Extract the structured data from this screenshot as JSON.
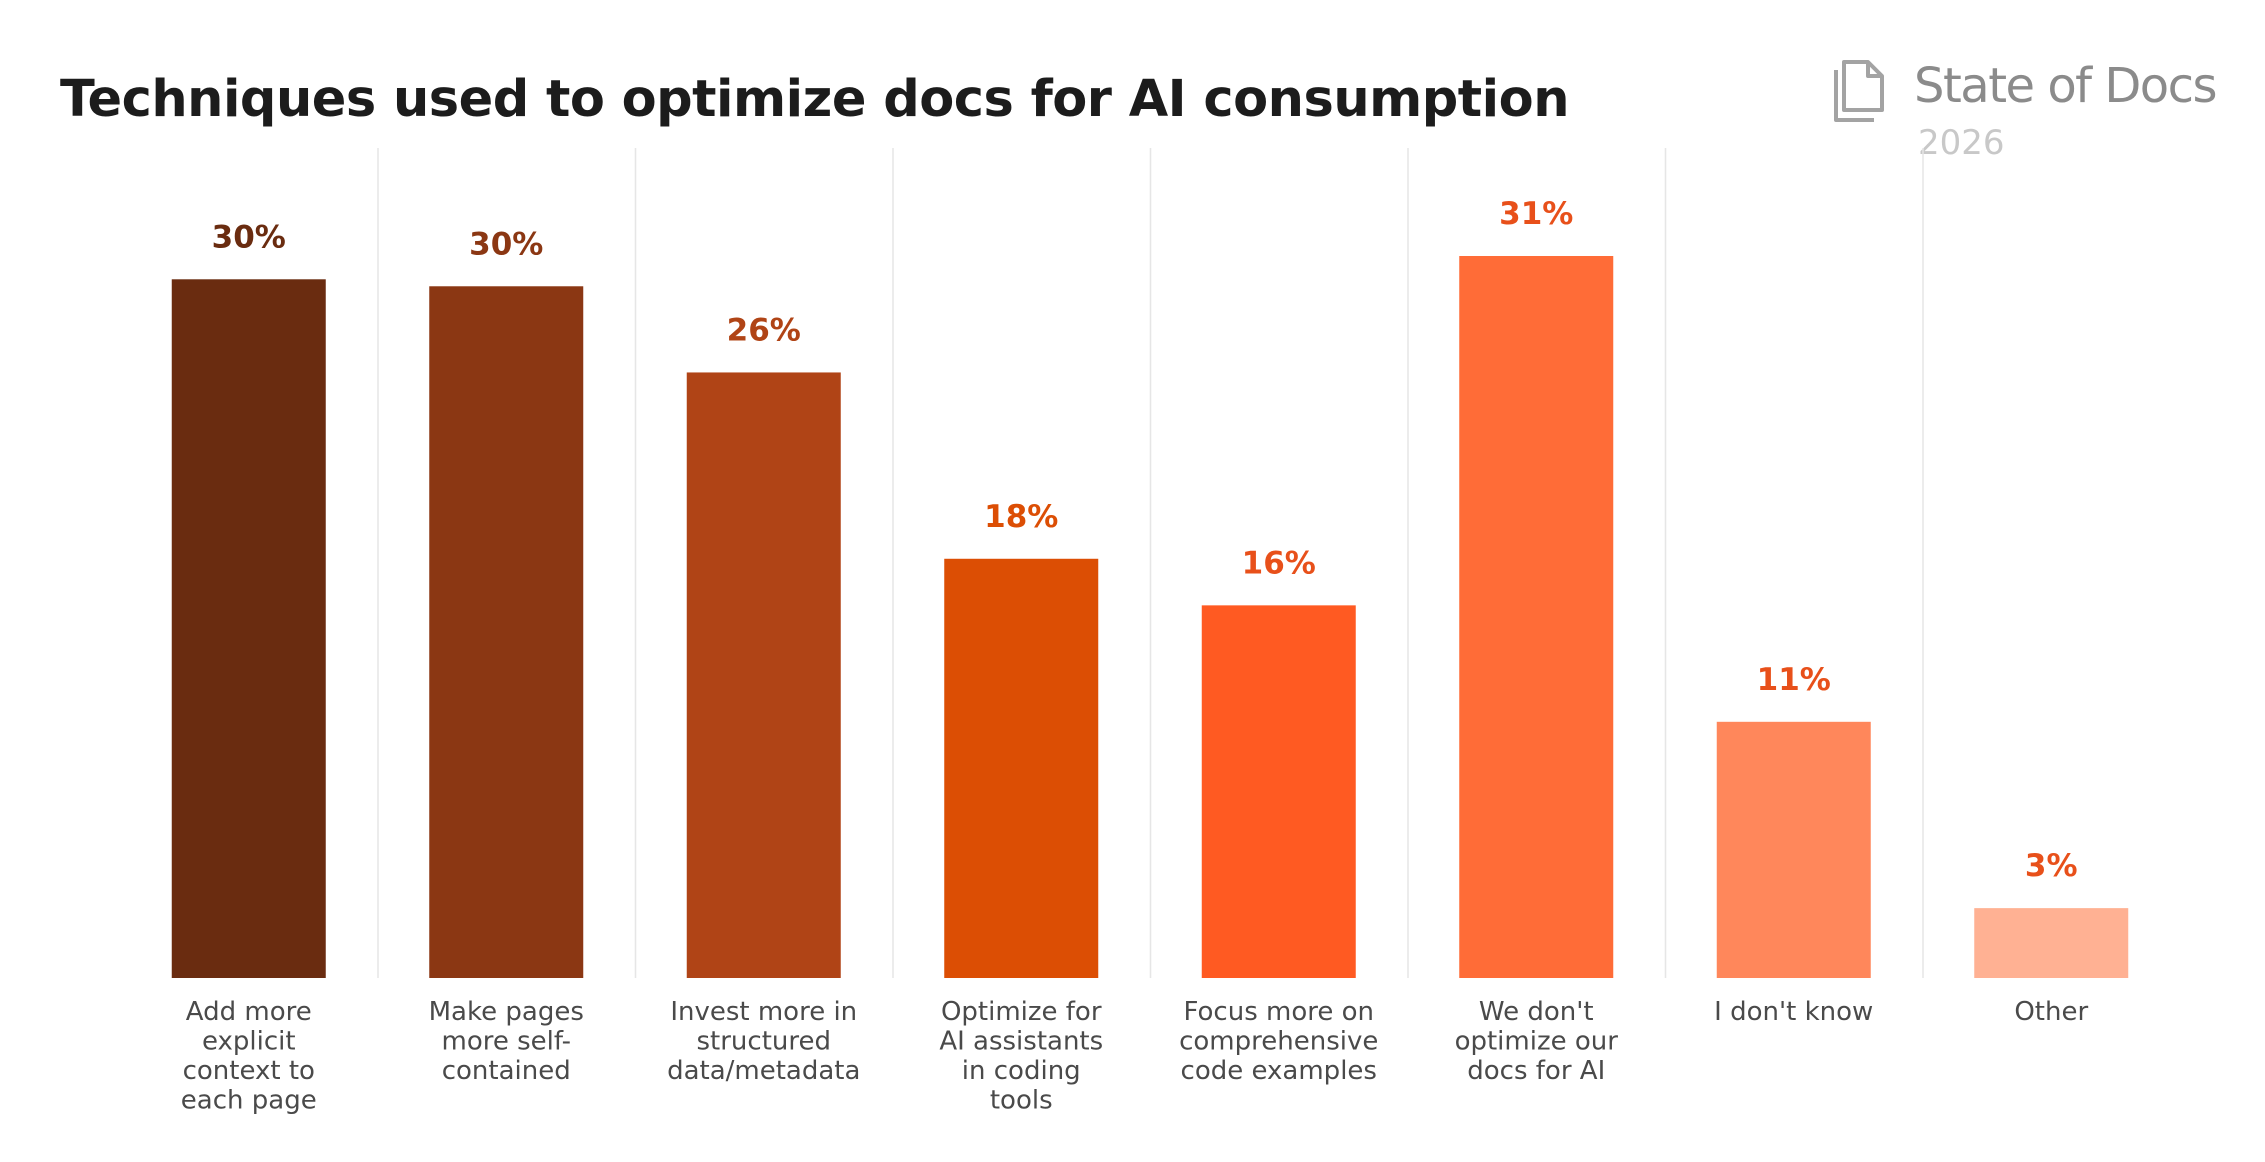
{
  "header": {
    "title": "Techniques used to optimize docs for AI consumption"
  },
  "brand": {
    "name": "State of Docs",
    "year": "2026",
    "icon": "document-stack-icon",
    "color": "#8b8b8b"
  },
  "chart_data": {
    "type": "bar",
    "title": "Techniques used to optimize docs for AI consumption",
    "xlabel": "",
    "ylabel": "",
    "ylim": [
      0,
      31
    ],
    "grid": "vertical separators between categories",
    "legend": "none",
    "categories": [
      [
        "Add more",
        "explicit",
        "context to",
        "each page"
      ],
      [
        "Make pages",
        "more self-",
        "contained"
      ],
      [
        "Invest more in",
        "structured",
        "data/metadata"
      ],
      [
        "Optimize for",
        "AI assistants",
        "in coding",
        "tools"
      ],
      [
        "Focus more on",
        "comprehensive",
        "code examples"
      ],
      [
        "We don't",
        "optimize our",
        "docs for AI"
      ],
      [
        "I don't know"
      ],
      [
        "Other"
      ]
    ],
    "values": [
      30.0,
      29.7,
      26.0,
      18.0,
      16.0,
      31.0,
      11.0,
      3.0
    ],
    "labels": [
      "30%",
      "30%",
      "26%",
      "18%",
      "16%",
      "31%",
      "11%",
      "3%"
    ],
    "bar_colors": [
      "#6a2c10",
      "#8b3713",
      "#b04416",
      "#dc4e04",
      "#ff5a22",
      "#ff6c37",
      "#ff875b",
      "#ffb193"
    ],
    "label_colors": [
      "#6a2c10",
      "#8b3713",
      "#b04416",
      "#dc4e04",
      "#e8501a",
      "#e8501a",
      "#e8501a",
      "#e8501a"
    ]
  }
}
